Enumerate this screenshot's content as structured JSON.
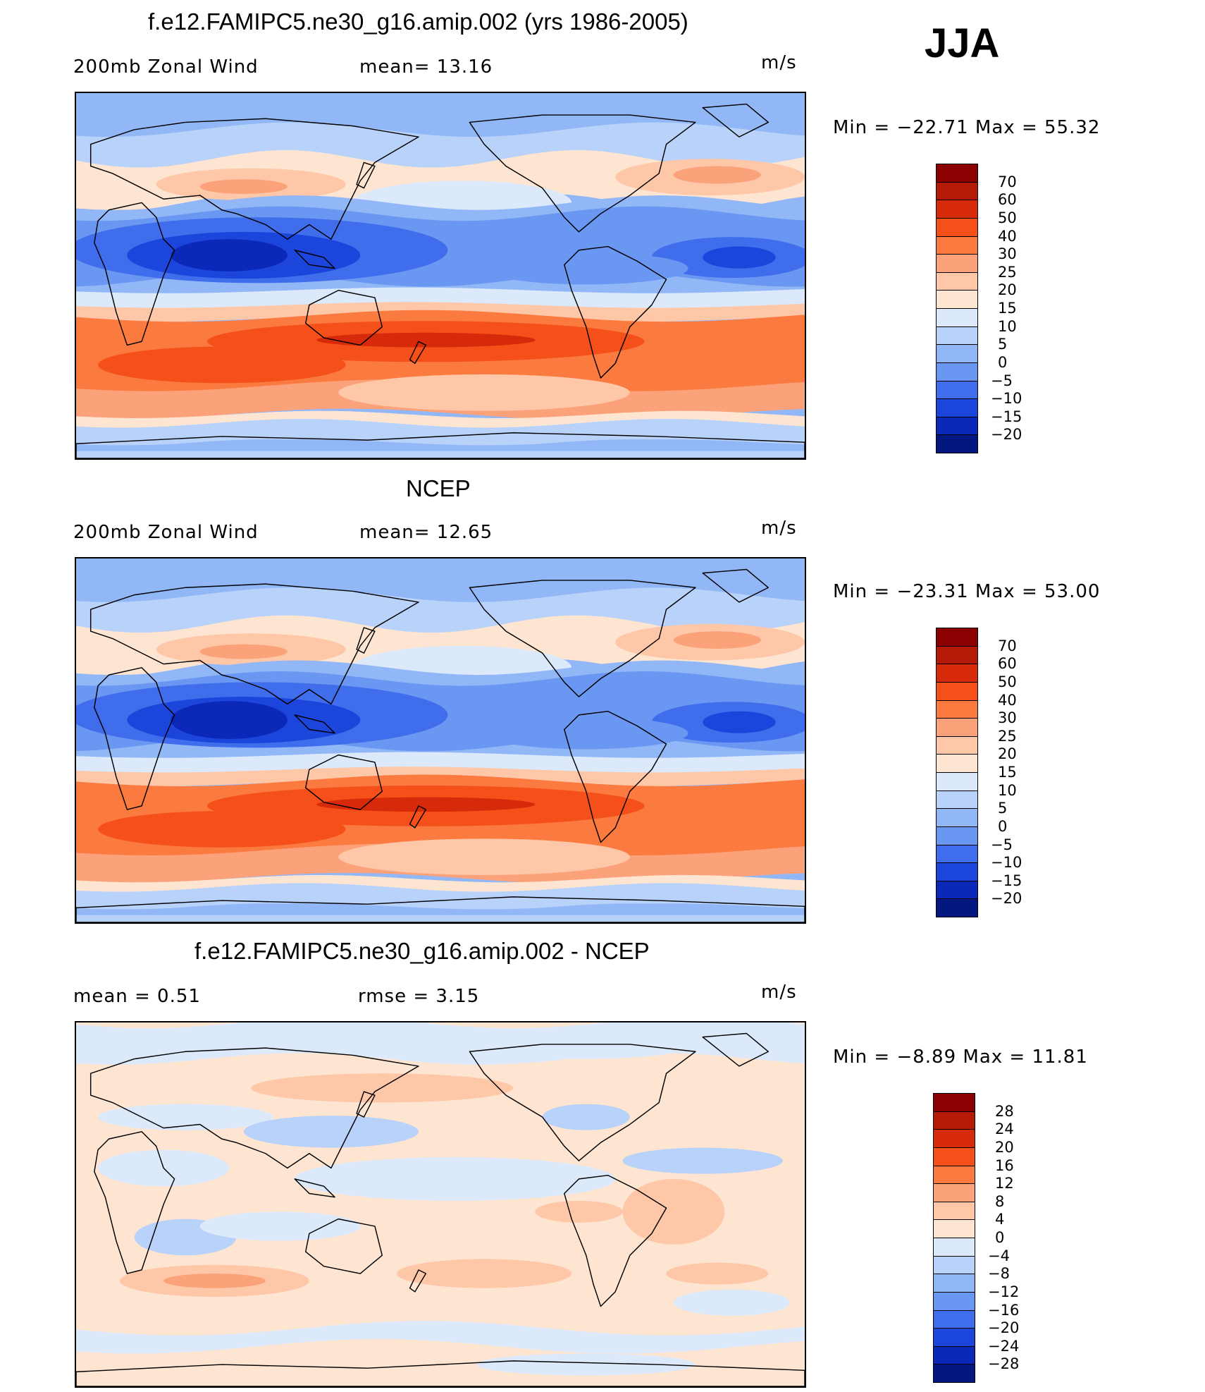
{
  "season": "JJA",
  "units": "m/s",
  "panels": [
    {
      "title": "f.e12.FAMIPC5.ne30_g16.amip.002 (yrs 1986-2005)",
      "left_label": "200mb Zonal Wind",
      "center_label": "mean=   13.16",
      "right_label": "m/s",
      "minmax": "Min  =  −22.71  Max  =   55.32",
      "colorbar_levels": [
        "70",
        "60",
        "50",
        "40",
        "30",
        "25",
        "20",
        "15",
        "10",
        "5",
        "0",
        "−5",
        "−10",
        "−15",
        "−20"
      ],
      "colorbar_colors": [
        "#8b0000",
        "#b41a05",
        "#d62a0a",
        "#f5501a",
        "#fb7a40",
        "#fca27a",
        "#fdc7a8",
        "#fee5d2",
        "#dbe9fb",
        "#b9d2fa",
        "#92b7f7",
        "#6a97f2",
        "#3f6deb",
        "#1c45dc",
        "#0c28b8",
        "#041680"
      ],
      "field": "model"
    },
    {
      "title": "NCEP",
      "left_label": "200mb Zonal Wind",
      "center_label": "mean=   12.65",
      "right_label": "m/s",
      "minmax": "Min  =  −23.31  Max  =   53.00",
      "colorbar_levels": [
        "70",
        "60",
        "50",
        "40",
        "30",
        "25",
        "20",
        "15",
        "10",
        "5",
        "0",
        "−5",
        "−10",
        "−15",
        "−20"
      ],
      "colorbar_colors": [
        "#8b0000",
        "#b41a05",
        "#d62a0a",
        "#f5501a",
        "#fb7a40",
        "#fca27a",
        "#fdc7a8",
        "#fee5d2",
        "#dbe9fb",
        "#b9d2fa",
        "#92b7f7",
        "#6a97f2",
        "#3f6deb",
        "#1c45dc",
        "#0c28b8",
        "#041680"
      ],
      "field": "obs"
    },
    {
      "title": "f.e12.FAMIPC5.ne30_g16.amip.002 - NCEP",
      "left_label": "mean  =     0.51",
      "center_label": "rmse  =     3.15",
      "right_label": "m/s",
      "minmax": "Min  =    −8.89  Max  =    11.81",
      "colorbar_levels": [
        "28",
        "24",
        "20",
        "16",
        "12",
        "8",
        "4",
        "0",
        "−4",
        "−8",
        "−12",
        "−16",
        "−20",
        "−24",
        "−28"
      ],
      "colorbar_colors": [
        "#8b0000",
        "#b41a05",
        "#d62a0a",
        "#f5501a",
        "#fb7a40",
        "#fca27a",
        "#fdc7a8",
        "#fee5d2",
        "#dbe9fb",
        "#b9d2fa",
        "#92b7f7",
        "#6a97f2",
        "#3f6deb",
        "#1c45dc",
        "#0c28b8",
        "#041680"
      ],
      "field": "diff"
    }
  ]
}
